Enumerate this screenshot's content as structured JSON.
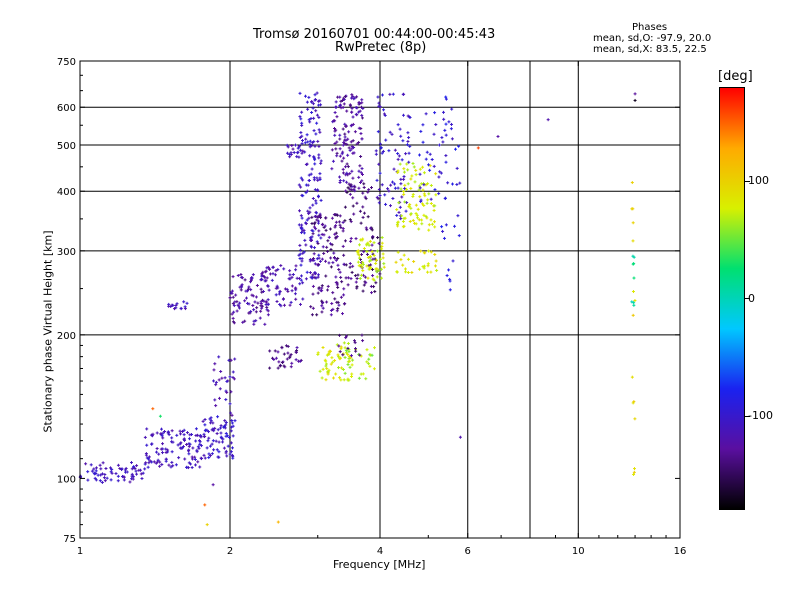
{
  "header": {
    "title_line1": "Tromsø 20160701 00:44:00-00:45:43",
    "title_line2": "RwPretec (8p)"
  },
  "phases_box": {
    "heading": "Phases",
    "line_o": "mean, sd,O: -97.9, 20.0",
    "line_x": "mean, sd,X:  83.5, 22.5"
  },
  "colorbar": {
    "unit_label": "[deg]",
    "ticks": [
      "100",
      "0",
      "-100"
    ],
    "tick_values": [
      100,
      0,
      -100
    ],
    "range": [
      -180,
      180
    ],
    "colors": [
      "#000000",
      "#5a0fa0",
      "#1a22f0",
      "#00c8ff",
      "#00e070",
      "#d8f000",
      "#ffaa00",
      "#ff0000"
    ]
  },
  "chart_data": {
    "type": "scatter",
    "title": "Tromsø 20160701 00:44:00-00:45:43",
    "subtitle": "RwPretec (8p)",
    "xlabel": "Frequency [MHz]",
    "ylabel": "Stationary phase Virtual Height [km]",
    "x_scale": "log",
    "y_scale": "log",
    "xlim": [
      1,
      16
    ],
    "ylim": [
      75,
      750
    ],
    "x_ticks": [
      1,
      2,
      4,
      6,
      10,
      16
    ],
    "x_tick_labels": [
      "1",
      "2",
      "4",
      "6",
      "10",
      "16"
    ],
    "x_gridlines": [
      2,
      4,
      6,
      8,
      10
    ],
    "y_ticks": [
      75,
      100,
      200,
      300,
      400,
      500,
      600,
      750
    ],
    "y_tick_labels": [
      "75",
      "100",
      "200",
      "300",
      "400",
      "500",
      "600",
      "750"
    ],
    "y_gridlines": [
      200,
      300,
      400,
      500,
      600
    ],
    "grid": true,
    "color_variable": "phase [deg]",
    "clusters": [
      {
        "f_range": [
          1.0,
          1.35
        ],
        "h_range": [
          98,
          108
        ],
        "phase": -110,
        "count": 70
      },
      {
        "f_range": [
          1.35,
          1.75
        ],
        "h_range": [
          105,
          128
        ],
        "phase": -110,
        "count": 120
      },
      {
        "f_range": [
          1.75,
          2.05
        ],
        "h_range": [
          110,
          135
        ],
        "phase": -105,
        "count": 80
      },
      {
        "f_range": [
          1.5,
          1.65
        ],
        "h_range": [
          225,
          235
        ],
        "phase": -112,
        "count": 15
      },
      {
        "f_range": [
          1.85,
          2.05
        ],
        "h_range": [
          135,
          180
        ],
        "phase": -115,
        "count": 30
      },
      {
        "f_range": [
          2.0,
          2.4
        ],
        "h_range": [
          210,
          270
        ],
        "phase": -125,
        "count": 90
      },
      {
        "f_range": [
          2.3,
          2.8
        ],
        "h_range": [
          230,
          280
        ],
        "phase": -118,
        "count": 70
      },
      {
        "f_range": [
          2.4,
          2.8
        ],
        "h_range": [
          170,
          190
        ],
        "phase": -135,
        "count": 35
      },
      {
        "f_range": [
          2.75,
          3.05
        ],
        "h_range": [
          260,
          650
        ],
        "phase": -105,
        "count": 170
      },
      {
        "f_range": [
          2.6,
          2.8
        ],
        "h_range": [
          470,
          500
        ],
        "phase": -112,
        "count": 20
      },
      {
        "f_range": [
          2.9,
          3.4
        ],
        "h_range": [
          220,
          360
        ],
        "phase": -135,
        "count": 130
      },
      {
        "f_range": [
          3.2,
          3.7
        ],
        "h_range": [
          400,
          640
        ],
        "phase": -125,
        "count": 140
      },
      {
        "f_range": [
          3.4,
          4.0
        ],
        "h_range": [
          240,
          420
        ],
        "phase": -140,
        "count": 90
      },
      {
        "f_range": [
          3.6,
          4.1
        ],
        "h_range": [
          260,
          320
        ],
        "phase": 75,
        "count": 60
      },
      {
        "f_range": [
          3.9,
          4.6
        ],
        "h_range": [
          350,
          640
        ],
        "phase": -105,
        "count": 80
      },
      {
        "f_range": [
          4.3,
          5.2
        ],
        "h_range": [
          330,
          460
        ],
        "phase": 78,
        "count": 90
      },
      {
        "f_range": [
          4.3,
          5.2
        ],
        "h_range": [
          270,
          300
        ],
        "phase": 85,
        "count": 30
      },
      {
        "f_range": [
          3.0,
          3.5
        ],
        "h_range": [
          160,
          195
        ],
        "phase": 80,
        "count": 55
      },
      {
        "f_range": [
          3.4,
          3.9
        ],
        "h_range": [
          160,
          190
        ],
        "phase": 65,
        "count": 30
      },
      {
        "f_range": [
          3.3,
          3.7
        ],
        "h_range": [
          180,
          200
        ],
        "phase": -135,
        "count": 15
      },
      {
        "f_range": [
          4.8,
          5.7
        ],
        "h_range": [
          380,
          600
        ],
        "phase": -95,
        "count": 40
      },
      {
        "f_range": [
          5.3,
          5.8
        ],
        "h_range": [
          240,
          640
        ],
        "phase": -90,
        "count": 25
      },
      {
        "f_range": [
          12.8,
          13.0
        ],
        "h_range": [
          90,
          460
        ],
        "phase": 95,
        "count": 15
      },
      {
        "f_range": [
          12.8,
          13.0
        ],
        "h_range": [
          230,
          300
        ],
        "phase": 10,
        "count": 8
      }
    ],
    "isolated_points": [
      {
        "f": 1.4,
        "h": 140,
        "phase": 150
      },
      {
        "f": 1.45,
        "h": 135,
        "phase": 30
      },
      {
        "f": 1.85,
        "h": 97,
        "phase": -125
      },
      {
        "f": 1.8,
        "h": 80,
        "phase": 100
      },
      {
        "f": 2.5,
        "h": 81,
        "phase": 120
      },
      {
        "f": 1.78,
        "h": 88,
        "phase": 150
      },
      {
        "f": 5.8,
        "h": 122,
        "phase": -120
      },
      {
        "f": 6.3,
        "h": 493,
        "phase": 160
      },
      {
        "f": 6.9,
        "h": 521,
        "phase": -125
      },
      {
        "f": 8.7,
        "h": 565,
        "phase": -120
      },
      {
        "f": 13.0,
        "h": 640,
        "phase": -130
      },
      {
        "f": 13.0,
        "h": 620,
        "phase": -170
      }
    ]
  }
}
